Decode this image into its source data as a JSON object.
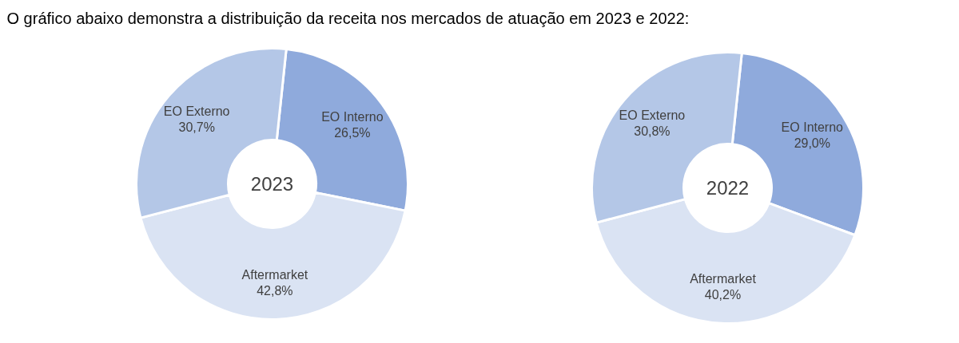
{
  "chart_data": [
    {
      "type": "donut",
      "title": "2023",
      "annotations": [
        "O gráfico abaixo demonstra a distribuição da receita nos mercados de atuação em 2023 e 2022:"
      ],
      "categories": [
        "EO Interno",
        "Aftermarket",
        "EO Externo"
      ],
      "values": [
        26.5,
        42.8,
        30.7
      ],
      "colors": [
        "#8faadc",
        "#dae3f3",
        "#b4c7e7"
      ],
      "value_labels": [
        "26,5%",
        "42,8%",
        "30,7%"
      ],
      "legend": false
    },
    {
      "type": "donut",
      "title": "2022",
      "categories": [
        "EO Interno",
        "Aftermarket",
        "EO Externo"
      ],
      "values": [
        29.0,
        40.2,
        30.8
      ],
      "colors": [
        "#8faadc",
        "#dae3f3",
        "#b4c7e7"
      ],
      "value_labels": [
        "29,0%",
        "40,2%",
        "30,8%"
      ],
      "legend": false
    }
  ]
}
